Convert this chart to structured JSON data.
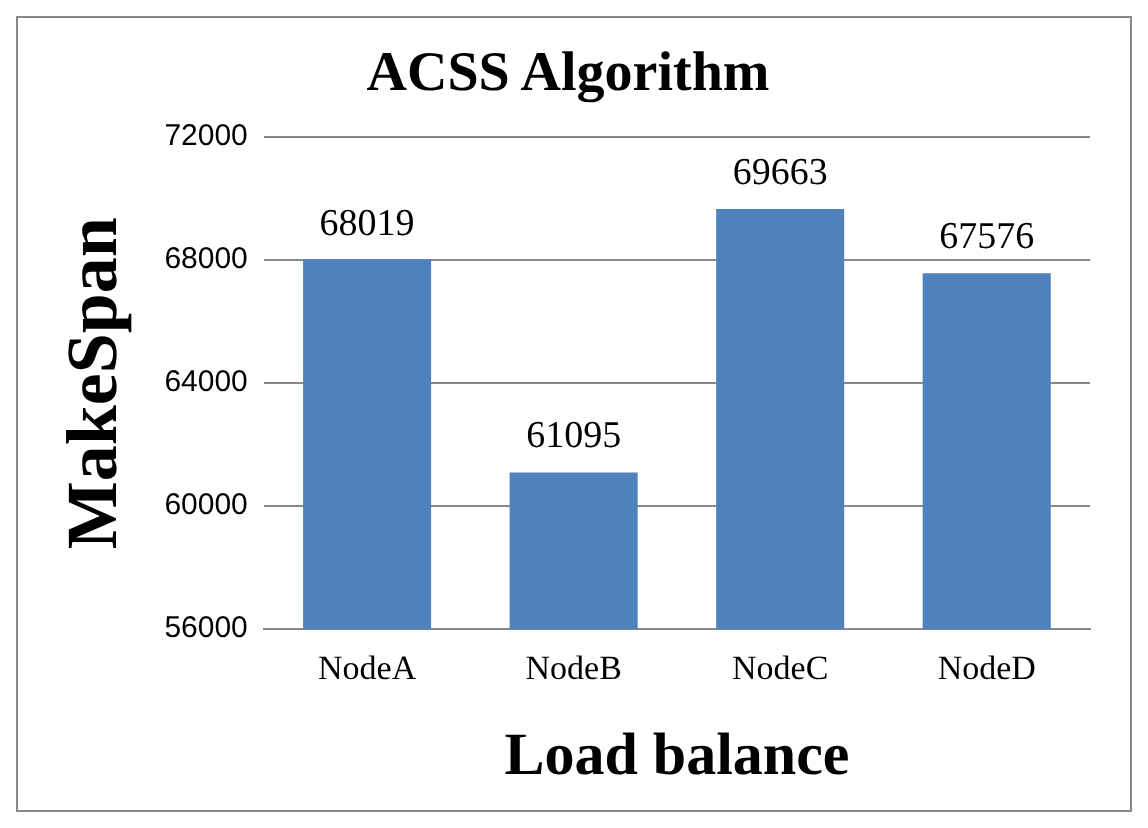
{
  "chart_data": {
    "type": "bar",
    "title": "ACSS Algorithm",
    "xlabel": "Load balance",
    "ylabel": "MakeSpan",
    "categories": [
      "NodeA",
      "NodeB",
      "NodeC",
      "NodeD"
    ],
    "values": [
      68019,
      61095,
      69663,
      67576
    ],
    "color": "#4f81bd",
    "ylim": [
      56000,
      72000
    ],
    "yticks": [
      56000,
      60000,
      64000,
      68000,
      72000
    ],
    "grid": "y",
    "legend": false,
    "data_labels": true
  }
}
